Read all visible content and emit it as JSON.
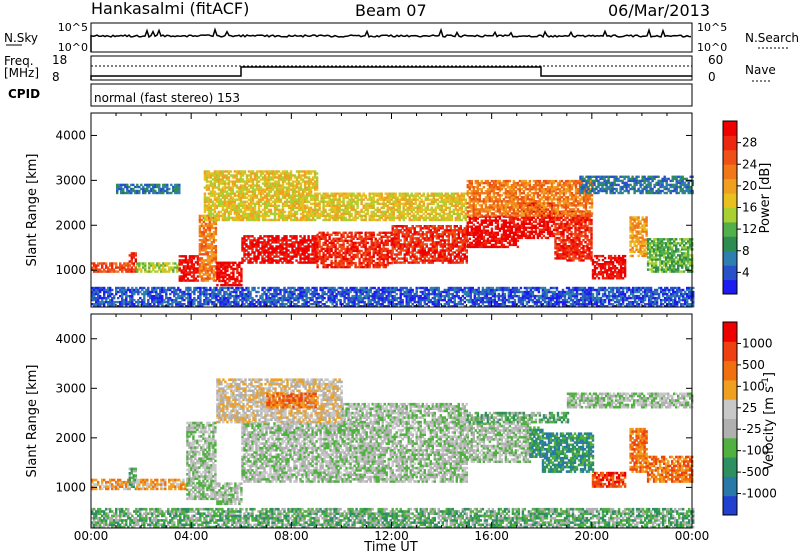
{
  "header": {
    "station": "Hankasalmi (fitACF)",
    "beam": "Beam 07",
    "date": "06/Mar/2013"
  },
  "summary_panels": {
    "nsky_label": "N.Sky",
    "nsky_ticks": [
      "10^5",
      "10^0"
    ],
    "nsearch_label": "N.Search",
    "nsearch_ticks": [
      "10^5",
      "10^0"
    ],
    "freq_label": "Freq.",
    "freq_unit": "[MHz]",
    "freq_ticks": [
      "18",
      "8"
    ],
    "nave_label": "Nave",
    "nave_ticks": [
      "60",
      "0"
    ],
    "cpid_label": "CPID",
    "cpid_text": "normal (fast stereo) 153"
  },
  "chart_data": [
    {
      "type": "heatmap",
      "name": "power",
      "ylabel": "Slant Range [km]",
      "xlabel": "",
      "xlim": [
        0,
        24
      ],
      "ylim": [
        180,
        4500
      ],
      "yticks": [
        1000,
        2000,
        3000,
        4000
      ],
      "colorbar": {
        "label": "Power [dB]",
        "range": [
          0,
          32
        ],
        "ticks": [
          4,
          8,
          12,
          16,
          20,
          24,
          28
        ],
        "colors": [
          "#1c1cf0",
          "#2850c8",
          "#2e7eb0",
          "#2e8c50",
          "#52b04a",
          "#a8d030",
          "#e8c020",
          "#f0a020",
          "#f07818",
          "#ef5018",
          "#ee2810",
          "#ee0000"
        ]
      },
      "bands": [
        {
          "t0": 0.0,
          "t1": 24.0,
          "r0": 180,
          "r1": 600,
          "level": 1
        },
        {
          "t0": 0.0,
          "t1": 1.5,
          "r0": 950,
          "r1": 1150,
          "level": 9
        },
        {
          "t0": 1.5,
          "t1": 1.8,
          "r0": 950,
          "r1": 1400,
          "level": 10
        },
        {
          "t0": 1.8,
          "t1": 3.5,
          "r0": 950,
          "r1": 1150,
          "level": 5
        },
        {
          "t0": 3.5,
          "t1": 4.3,
          "r0": 750,
          "r1": 1300,
          "level": 11
        },
        {
          "t0": 4.3,
          "t1": 5.0,
          "r0": 750,
          "r1": 2200,
          "level": 8
        },
        {
          "t0": 5.0,
          "t1": 6.0,
          "r0": 650,
          "r1": 1150,
          "level": 11
        },
        {
          "t0": 6.0,
          "t1": 9.0,
          "r0": 1150,
          "r1": 1750,
          "level": 11
        },
        {
          "t0": 9.0,
          "t1": 12.0,
          "r0": 1050,
          "r1": 1850,
          "level": 10
        },
        {
          "t0": 12.0,
          "t1": 15.0,
          "r0": 1150,
          "r1": 2000,
          "level": 10
        },
        {
          "t0": 15.0,
          "t1": 17.0,
          "r0": 1500,
          "r1": 2200,
          "level": 11
        },
        {
          "t0": 17.0,
          "t1": 18.5,
          "r0": 1700,
          "r1": 2500,
          "level": 11
        },
        {
          "t0": 18.5,
          "t1": 20.0,
          "r0": 1200,
          "r1": 2300,
          "level": 10
        },
        {
          "t0": 20.0,
          "t1": 21.3,
          "r0": 800,
          "r1": 1300,
          "level": 11
        },
        {
          "t0": 21.5,
          "t1": 22.2,
          "r0": 1300,
          "r1": 2200,
          "level": 7
        },
        {
          "t0": 22.2,
          "t1": 24.0,
          "r0": 950,
          "r1": 1700,
          "level": 4
        },
        {
          "t0": 4.5,
          "t1": 9.0,
          "r0": 2100,
          "r1": 3200,
          "level": 6
        },
        {
          "t0": 9.0,
          "t1": 15.0,
          "r0": 2100,
          "r1": 2700,
          "level": 6
        },
        {
          "t0": 15.0,
          "t1": 20.0,
          "r0": 2200,
          "r1": 3000,
          "level": 8
        },
        {
          "t0": 19.5,
          "t1": 24.0,
          "r0": 2700,
          "r1": 3100,
          "level": 2
        },
        {
          "t0": 1.0,
          "t1": 3.5,
          "r0": 2700,
          "r1": 2900,
          "level": 2
        }
      ]
    },
    {
      "type": "heatmap",
      "name": "velocity",
      "ylabel": "Slant Range [km]",
      "xlabel": "Time UT",
      "xlim": [
        0,
        24
      ],
      "ylim": [
        180,
        4500
      ],
      "yticks": [
        1000,
        2000,
        3000,
        4000
      ],
      "xticks": [
        "00:00",
        "04:00",
        "08:00",
        "12:00",
        "16:00",
        "20:00",
        "00:00"
      ],
      "colorbar": {
        "label": "Velocity [m s",
        "label_exp": "-1",
        "label_end": "]",
        "ticks": [
          "1000",
          "500",
          "100",
          "25",
          "-25",
          "-100",
          "-500",
          "-1000"
        ],
        "colors": [
          "#2040d0",
          "#2878a8",
          "#2e9060",
          "#50b040",
          "#b0b0b0",
          "#c8c8c8",
          "#f0a020",
          "#f07010",
          "#ee4010",
          "#ee0000"
        ]
      },
      "bands": [
        {
          "t0": 0.0,
          "t1": 24.0,
          "r0": 180,
          "r1": 550,
          "level": 3
        },
        {
          "t0": 0.0,
          "t1": 1.5,
          "r0": 950,
          "r1": 1150,
          "level": 6
        },
        {
          "t0": 1.5,
          "t1": 1.8,
          "r0": 950,
          "r1": 1400,
          "level": 3
        },
        {
          "t0": 1.8,
          "t1": 3.8,
          "r0": 950,
          "r1": 1150,
          "level": 6
        },
        {
          "t0": 3.8,
          "t1": 5.0,
          "r0": 750,
          "r1": 2300,
          "level": 4
        },
        {
          "t0": 5.0,
          "t1": 6.0,
          "r0": 650,
          "r1": 1100,
          "level": 4
        },
        {
          "t0": 6.0,
          "t1": 15.0,
          "r0": 1100,
          "r1": 2300,
          "level": 4
        },
        {
          "t0": 15.0,
          "t1": 17.5,
          "r0": 1500,
          "r1": 2300,
          "level": 4
        },
        {
          "t0": 17.5,
          "t1": 18.0,
          "r0": 1600,
          "r1": 2200,
          "level": 2
        },
        {
          "t0": 18.0,
          "t1": 20.0,
          "r0": 1300,
          "r1": 2100,
          "level": 2
        },
        {
          "t0": 20.0,
          "t1": 21.3,
          "r0": 1000,
          "r1": 1300,
          "level": 8
        },
        {
          "t0": 21.5,
          "t1": 22.2,
          "r0": 1300,
          "r1": 2200,
          "level": 7
        },
        {
          "t0": 22.2,
          "t1": 24.0,
          "r0": 1100,
          "r1": 1600,
          "level": 7
        },
        {
          "t0": 5.0,
          "t1": 10.0,
          "r0": 2300,
          "r1": 3200,
          "level": 5
        },
        {
          "t0": 10.0,
          "t1": 15.0,
          "r0": 2300,
          "r1": 2700,
          "level": 4
        },
        {
          "t0": 15.0,
          "t1": 19.0,
          "r0": 2300,
          "r1": 2500,
          "level": 3
        },
        {
          "t0": 19.0,
          "t1": 24.0,
          "r0": 2600,
          "r1": 2900,
          "level": 4
        },
        {
          "t0": 7.0,
          "t1": 9.0,
          "r0": 2600,
          "r1": 2900,
          "level": 7
        }
      ]
    }
  ]
}
